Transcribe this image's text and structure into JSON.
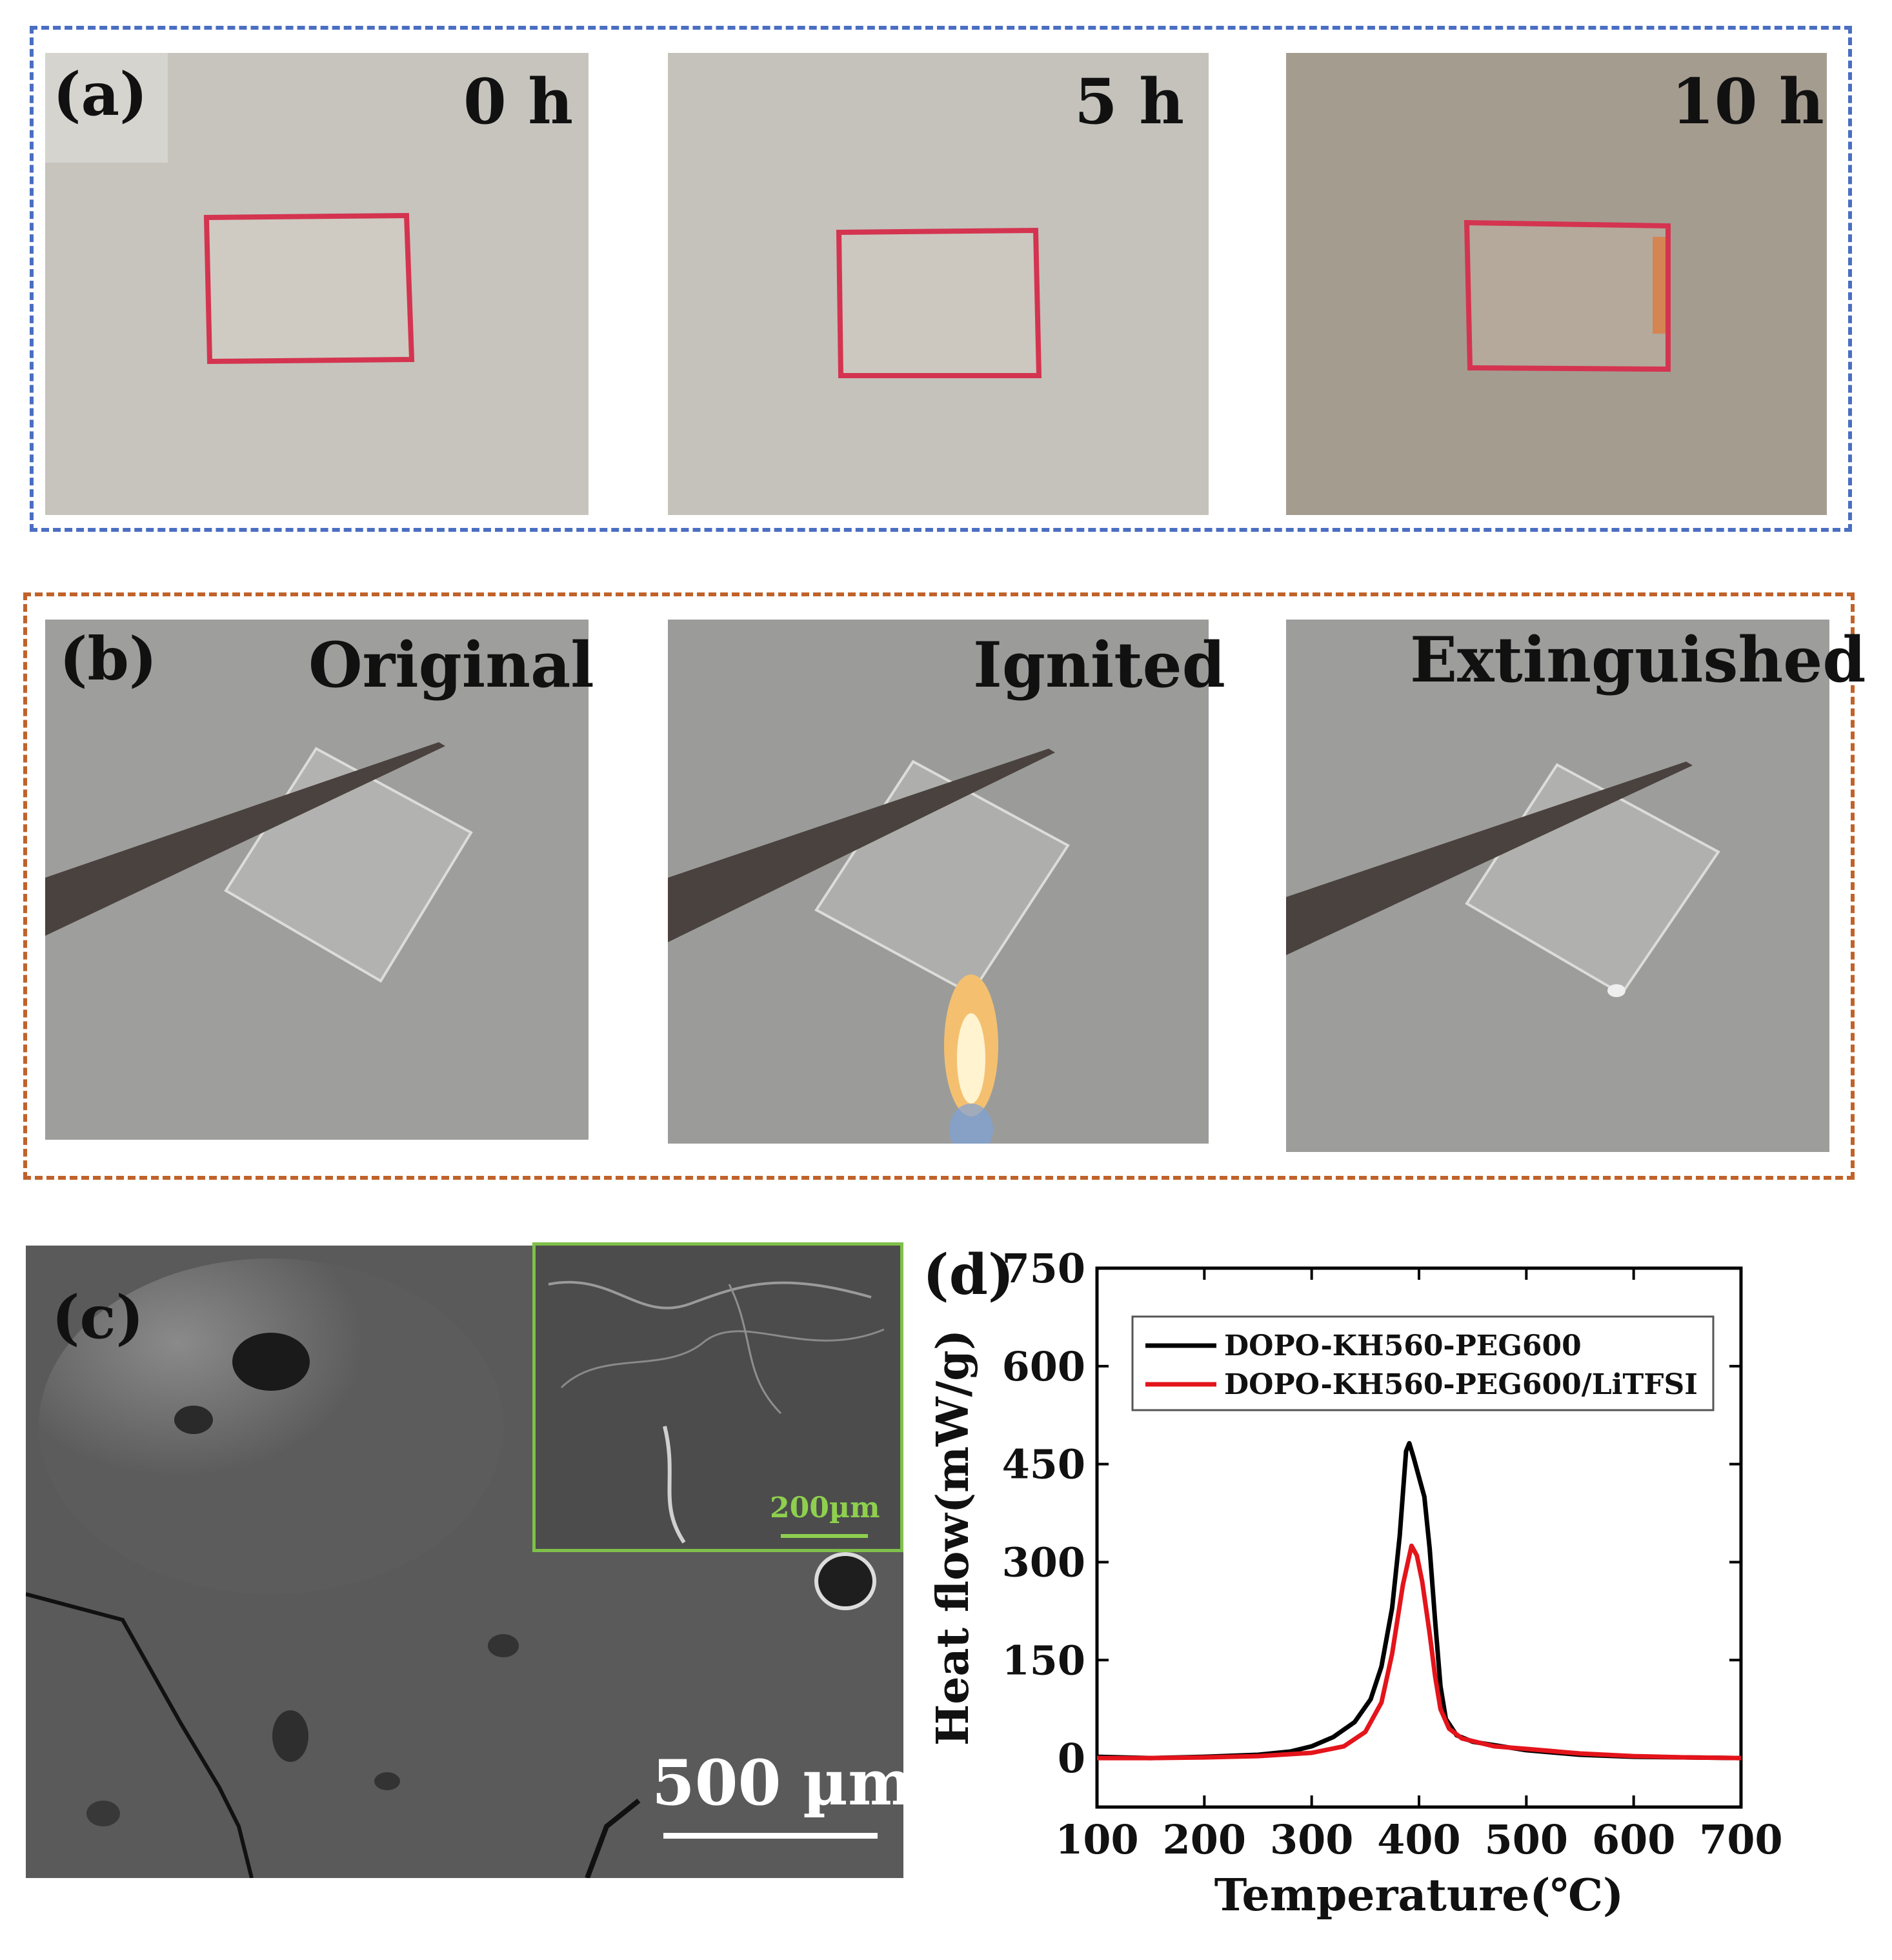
{
  "panel_a": {
    "letter": "(a)",
    "photos": [
      {
        "time": "0 h"
      },
      {
        "time": "5 h"
      },
      {
        "time": "10 h"
      }
    ]
  },
  "panel_b": {
    "letter": "(b)",
    "photos": [
      {
        "state": "Original"
      },
      {
        "state": "Ignited"
      },
      {
        "state": "Extinguished"
      }
    ]
  },
  "panel_c": {
    "letter": "(c)",
    "scale_main": "500 µm",
    "scale_inset": "200µm"
  },
  "colors": {
    "frame_a": "#4a6ec2",
    "frame_b": "#c0622a",
    "series_black": "#000000",
    "series_red": "#e4141b",
    "inset_border": "#7fc04a"
  },
  "chart_data": {
    "type": "line",
    "panel_letter": "(d)",
    "xlabel": "Temperature(℃)",
    "ylabel": "Heat flow(mW/g)",
    "xlim": [
      100,
      700
    ],
    "ylim": [
      -75,
      750
    ],
    "xticks": [
      100,
      200,
      300,
      400,
      500,
      600,
      700
    ],
    "yticks": [
      0,
      150,
      300,
      450,
      600,
      750
    ],
    "legend_position": "top-left",
    "grid": false,
    "series": [
      {
        "name": "DOPO-KH560-PEG600",
        "color": "#000000",
        "points": [
          [
            100,
            2
          ],
          [
            150,
            0
          ],
          [
            200,
            2
          ],
          [
            250,
            5
          ],
          [
            280,
            10
          ],
          [
            300,
            18
          ],
          [
            320,
            32
          ],
          [
            340,
            55
          ],
          [
            355,
            90
          ],
          [
            365,
            140
          ],
          [
            375,
            230
          ],
          [
            382,
            340
          ],
          [
            388,
            470
          ],
          [
            391,
            482
          ],
          [
            395,
            460
          ],
          [
            400,
            430
          ],
          [
            405,
            400
          ],
          [
            410,
            320
          ],
          [
            415,
            210
          ],
          [
            420,
            110
          ],
          [
            425,
            60
          ],
          [
            435,
            35
          ],
          [
            450,
            25
          ],
          [
            500,
            12
          ],
          [
            550,
            5
          ],
          [
            600,
            2
          ],
          [
            650,
            1
          ],
          [
            700,
            0
          ]
        ]
      },
      {
        "name": "DOPO-KH560-PEG600/LiTFSI",
        "color": "#e4141b",
        "points": [
          [
            100,
            0
          ],
          [
            150,
            0
          ],
          [
            200,
            1
          ],
          [
            250,
            3
          ],
          [
            300,
            8
          ],
          [
            330,
            18
          ],
          [
            350,
            40
          ],
          [
            365,
            85
          ],
          [
            375,
            160
          ],
          [
            385,
            265
          ],
          [
            393,
            325
          ],
          [
            398,
            310
          ],
          [
            403,
            270
          ],
          [
            410,
            190
          ],
          [
            415,
            125
          ],
          [
            420,
            75
          ],
          [
            428,
            45
          ],
          [
            440,
            30
          ],
          [
            470,
            18
          ],
          [
            500,
            14
          ],
          [
            550,
            7
          ],
          [
            600,
            3
          ],
          [
            650,
            1
          ],
          [
            700,
            0
          ]
        ]
      }
    ]
  }
}
